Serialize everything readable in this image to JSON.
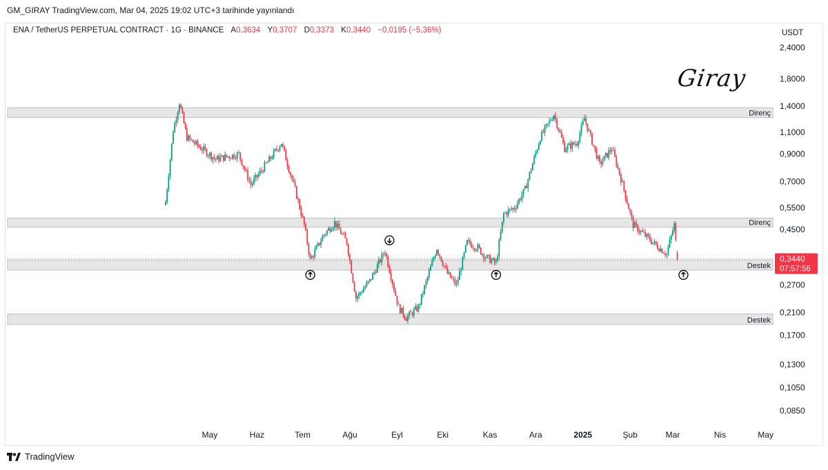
{
  "published": "GM_GIRAY TradingView.com, Mar 04, 2025 19:02 UTC+3 tarihinde yayınlandı",
  "legend": {
    "symbol": "ENA / TetherUS PERPETUAL CONTRACT · 1G · BINANCE",
    "open_label": "A",
    "open": "0,3634",
    "high_label": "Y",
    "high": "0,3707",
    "low_label": "D",
    "low": "0,3373",
    "close_label": "K",
    "close": "0,3440",
    "change": "−0,0195 (−5,36%)"
  },
  "signature": "Giray",
  "footer": {
    "brand": "TradingView"
  },
  "colors": {
    "up": "#089981",
    "down": "#f23645",
    "zone_fill": "#e6e6e6",
    "zone_border": "#bdbdbd",
    "price_tag": "#f23645"
  },
  "chart_data": {
    "type": "candlestick",
    "scale": "log",
    "currency": "USDT",
    "y_ticks": [
      "2,4000",
      "1,8000",
      "1,4000",
      "1,1000",
      "0,9000",
      "0,7000",
      "0,5500",
      "0,4500",
      "0,2700",
      "0,2100",
      "0,1700",
      "0,1300",
      "0,1050",
      "0,0850"
    ],
    "y_tick_values": [
      2.4,
      1.8,
      1.4,
      1.1,
      0.9,
      0.7,
      0.55,
      0.45,
      0.27,
      0.21,
      0.17,
      0.13,
      0.105,
      0.085
    ],
    "x_ticks": [
      "May",
      "Haz",
      "Tem",
      "Ağu",
      "Eyl",
      "Eki",
      "Kas",
      "Ara",
      "2025",
      "Şub",
      "Mar",
      "Nis",
      "May"
    ],
    "x_tick_dates": [
      "2024-05-01",
      "2024-06-01",
      "2024-07-01",
      "2024-08-01",
      "2024-09-01",
      "2024-10-01",
      "2024-11-01",
      "2024-12-01",
      "2025-01-01",
      "2025-02-01",
      "2025-03-01",
      "2025-04-01",
      "2025-05-01"
    ],
    "zones": [
      {
        "label": "Direnç",
        "low": 1.26,
        "high": 1.38
      },
      {
        "label": "Direnç",
        "low": 0.46,
        "high": 0.5
      },
      {
        "label": "Destek",
        "low": 0.31,
        "high": 0.34
      },
      {
        "label": "Destek",
        "low": 0.188,
        "high": 0.207
      }
    ],
    "markers": [
      {
        "date": "2024-07-06",
        "direction": "up"
      },
      {
        "date": "2024-08-27",
        "direction": "down"
      },
      {
        "date": "2024-11-05",
        "direction": "up"
      },
      {
        "date": "2025-03-08",
        "direction": "up"
      }
    ],
    "last_price": "0,3440",
    "countdown": "07:57:56",
    "key_points": [
      {
        "date": "2024-04-02",
        "close": 0.58
      },
      {
        "date": "2024-04-07",
        "close": 1.12
      },
      {
        "date": "2024-04-11",
        "close": 1.45
      },
      {
        "date": "2024-04-16",
        "close": 1.05
      },
      {
        "date": "2024-05-05",
        "close": 0.86
      },
      {
        "date": "2024-05-20",
        "close": 0.9
      },
      {
        "date": "2024-05-28",
        "close": 0.68
      },
      {
        "date": "2024-06-07",
        "close": 0.82
      },
      {
        "date": "2024-06-17",
        "close": 1.0
      },
      {
        "date": "2024-06-26",
        "close": 0.65
      },
      {
        "date": "2024-07-02",
        "close": 0.47
      },
      {
        "date": "2024-07-06",
        "close": 0.34
      },
      {
        "date": "2024-07-15",
        "close": 0.43
      },
      {
        "date": "2024-07-22",
        "close": 0.48
      },
      {
        "date": "2024-07-30",
        "close": 0.4
      },
      {
        "date": "2024-08-05",
        "close": 0.24
      },
      {
        "date": "2024-08-14",
        "close": 0.28
      },
      {
        "date": "2024-08-24",
        "close": 0.37
      },
      {
        "date": "2024-09-02",
        "close": 0.22
      },
      {
        "date": "2024-09-07",
        "close": 0.2
      },
      {
        "date": "2024-09-15",
        "close": 0.22
      },
      {
        "date": "2024-09-27",
        "close": 0.38
      },
      {
        "date": "2024-10-04",
        "close": 0.3
      },
      {
        "date": "2024-10-10",
        "close": 0.27
      },
      {
        "date": "2024-10-17",
        "close": 0.4
      },
      {
        "date": "2024-10-24",
        "close": 0.38
      },
      {
        "date": "2024-10-29",
        "close": 0.35
      },
      {
        "date": "2024-11-05",
        "close": 0.33
      },
      {
        "date": "2024-11-10",
        "close": 0.52
      },
      {
        "date": "2024-11-17",
        "close": 0.55
      },
      {
        "date": "2024-11-24",
        "close": 0.65
      },
      {
        "date": "2024-12-04",
        "close": 1.05
      },
      {
        "date": "2024-12-13",
        "close": 1.3
      },
      {
        "date": "2024-12-20",
        "close": 0.95
      },
      {
        "date": "2024-12-28",
        "close": 1.0
      },
      {
        "date": "2025-01-02",
        "close": 1.25
      },
      {
        "date": "2025-01-12",
        "close": 0.82
      },
      {
        "date": "2025-01-20",
        "close": 0.95
      },
      {
        "date": "2025-01-26",
        "close": 0.72
      },
      {
        "date": "2025-02-03",
        "close": 0.47
      },
      {
        "date": "2025-02-12",
        "close": 0.42
      },
      {
        "date": "2025-02-18",
        "close": 0.39
      },
      {
        "date": "2025-02-25",
        "close": 0.36
      },
      {
        "date": "2025-03-02",
        "close": 0.47
      },
      {
        "date": "2025-03-04",
        "close": 0.344
      }
    ]
  }
}
